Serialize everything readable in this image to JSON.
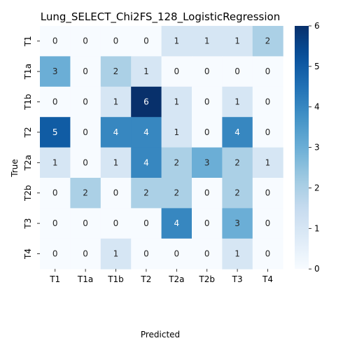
{
  "chart_data": {
    "type": "heatmap",
    "title": "Lung_SELECT_Chi2FS_128_LogisticRegression",
    "xlabel": "Predicted",
    "ylabel": "True",
    "x_categories": [
      "T1",
      "T1a",
      "T1b",
      "T2",
      "T2a",
      "T2b",
      "T3",
      "T4"
    ],
    "y_categories": [
      "T1",
      "T1a",
      "T1b",
      "T2",
      "T2a",
      "T2b",
      "T3",
      "T4"
    ],
    "matrix": [
      [
        0,
        0,
        0,
        0,
        1,
        1,
        1,
        2
      ],
      [
        3,
        0,
        2,
        1,
        0,
        0,
        0,
        0
      ],
      [
        0,
        0,
        1,
        6,
        1,
        0,
        1,
        0
      ],
      [
        5,
        0,
        4,
        4,
        1,
        0,
        4,
        0
      ],
      [
        1,
        0,
        1,
        4,
        2,
        3,
        2,
        1
      ],
      [
        0,
        2,
        0,
        2,
        2,
        0,
        2,
        0
      ],
      [
        0,
        0,
        0,
        0,
        4,
        0,
        3,
        0
      ],
      [
        0,
        0,
        1,
        0,
        0,
        0,
        1,
        0
      ]
    ],
    "colorbar": {
      "min": 0,
      "max": 6,
      "ticks": [
        "0",
        "1",
        "2",
        "3",
        "4",
        "5",
        "6"
      ],
      "colormap": "Blues"
    }
  }
}
